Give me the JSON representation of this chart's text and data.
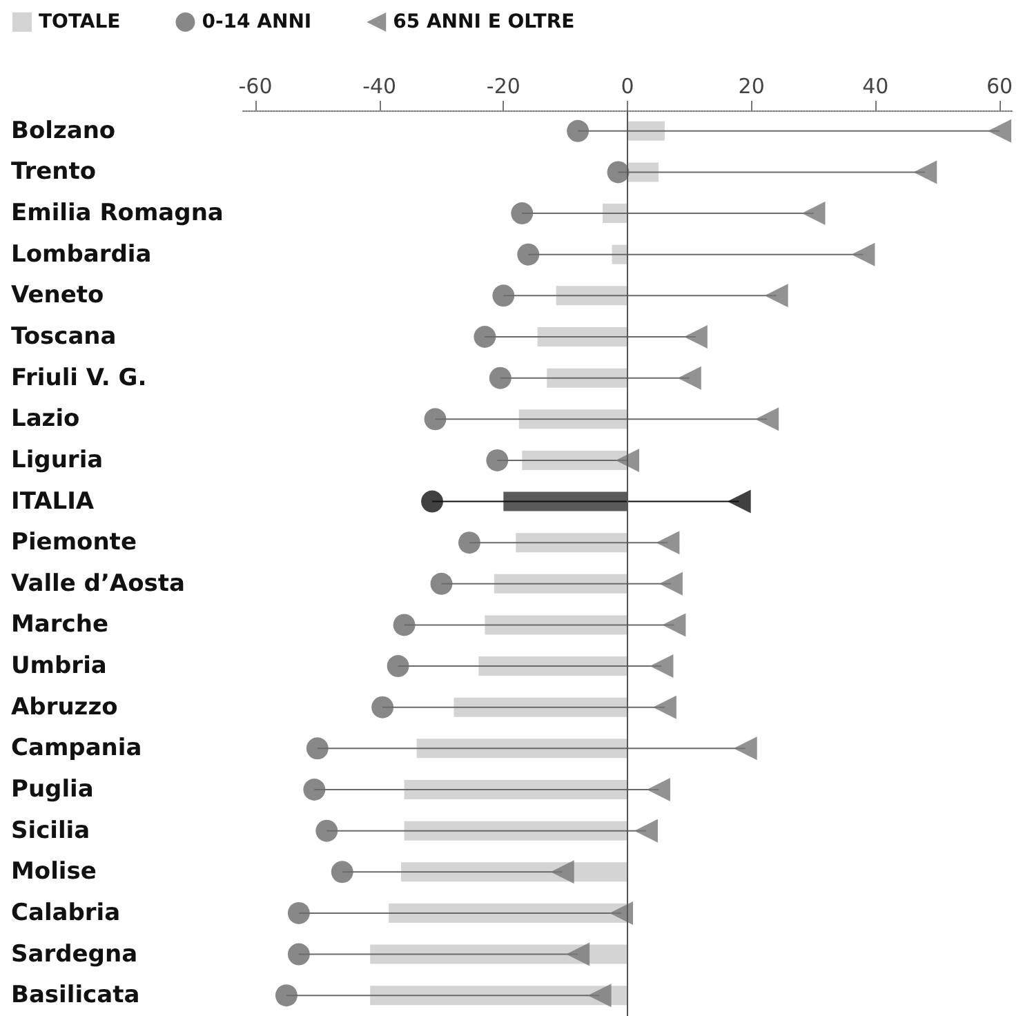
{
  "chart_data": {
    "type": "bar",
    "orientation": "horizontal",
    "legend": "top left",
    "grid": false,
    "categories": [
      "Bolzano",
      "Trento",
      "Emilia Romagna",
      "Lombardia",
      "Veneto",
      "Toscana",
      "Friuli V. G.",
      "Lazio",
      "Liguria",
      "ITALIA",
      "Piemonte",
      "Valle d’Aosta",
      "Marche",
      "Umbria",
      "Abruzzo",
      "Campania",
      "Puglia",
      "Sicilia",
      "Molise",
      "Calabria",
      "Sardegna",
      "Basilicata"
    ],
    "xlim": [
      -62,
      62
    ],
    "xticks": [
      -60,
      -40,
      -20,
      0,
      20,
      40,
      60
    ],
    "ref_lines": [
      {
        "axis": "x",
        "value": 0,
        "color": "#555555"
      }
    ],
    "series": [
      {
        "name": "TOTALE",
        "type": "bar",
        "colors": [
          "#d4d4d4",
          "#d4d4d4",
          "#d4d4d4",
          "#d4d4d4",
          "#d4d4d4",
          "#d4d4d4",
          "#d4d4d4",
          "#d4d4d4",
          "#d4d4d4",
          "#5a5a5a",
          "#d4d4d4",
          "#d4d4d4",
          "#d4d4d4",
          "#d4d4d4",
          "#d4d4d4",
          "#d4d4d4",
          "#d4d4d4",
          "#d4d4d4",
          "#d4d4d4",
          "#d4d4d4",
          "#d4d4d4",
          "#d4d4d4"
        ],
        "values": [
          6,
          5,
          -4,
          -2.5,
          -11.5,
          -14.5,
          -13,
          -17.5,
          -17,
          -20,
          -18,
          -21.5,
          -23,
          -24,
          -28,
          -34,
          -36,
          -36,
          -36.5,
          -38.5,
          -41.5,
          -41.5
        ]
      },
      {
        "name": "0-14 ANNI",
        "type": "scatter",
        "marker": "circle",
        "colors": [
          "#6a6a6a",
          "#6a6a6a",
          "#6a6a6a",
          "#6a6a6a",
          "#6a6a6a",
          "#6a6a6a",
          "#6a6a6a",
          "#6a6a6a",
          "#6a6a6a",
          "#111111",
          "#6a6a6a",
          "#6a6a6a",
          "#6a6a6a",
          "#6a6a6a",
          "#6a6a6a",
          "#6a6a6a",
          "#6a6a6a",
          "#6a6a6a",
          "#6a6a6a",
          "#6a6a6a",
          "#6a6a6a",
          "#6a6a6a"
        ],
        "values": [
          -8,
          -1.5,
          -17,
          -16,
          -20,
          -23,
          -20.5,
          -31,
          -21,
          -31.5,
          -25.5,
          -30,
          -36,
          -37,
          -39.5,
          -50,
          -50.5,
          -48.5,
          -46,
          -53,
          -53,
          -55
        ]
      },
      {
        "name": "65 ANNI E OLTRE",
        "type": "scatter",
        "marker": "triangle",
        "colors": [
          "#777777",
          "#777777",
          "#777777",
          "#777777",
          "#777777",
          "#777777",
          "#777777",
          "#777777",
          "#777777",
          "#111111",
          "#777777",
          "#777777",
          "#777777",
          "#777777",
          "#777777",
          "#777777",
          "#777777",
          "#777777",
          "#777777",
          "#777777",
          "#777777",
          "#777777"
        ],
        "values": [
          60,
          48,
          30,
          38,
          24,
          11,
          10,
          22.5,
          0,
          18,
          6.5,
          7,
          7.5,
          5.5,
          6,
          19,
          5,
          3,
          -10.5,
          -1,
          -8,
          -4.5
        ]
      }
    ]
  }
}
